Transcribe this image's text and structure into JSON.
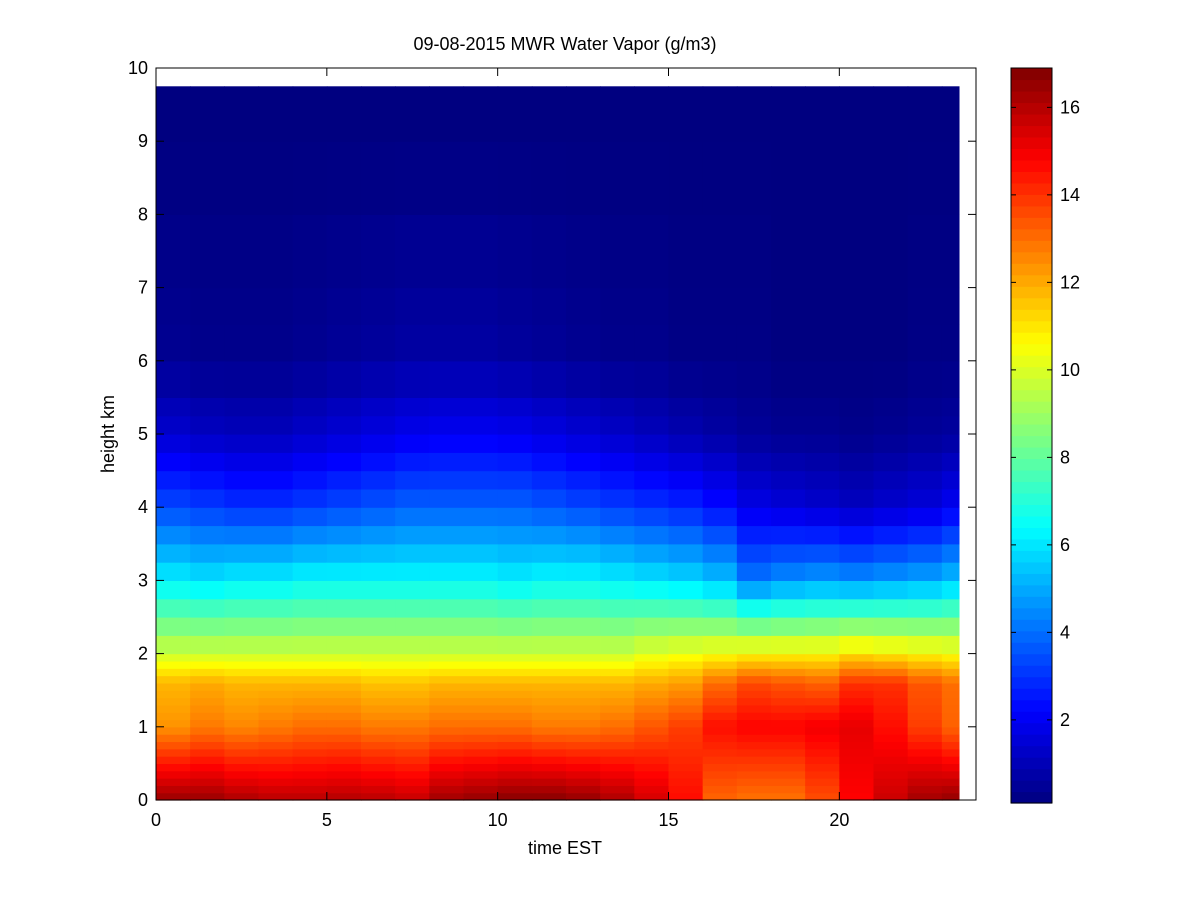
{
  "chart_data": {
    "type": "heatmap",
    "title": "09-08-2015 MWR Water Vapor (g/m3)",
    "xlabel": "time EST",
    "ylabel": "height km",
    "xlim": [
      0,
      24
    ],
    "ylim": [
      0,
      10
    ],
    "x_ticks": [
      0,
      5,
      10,
      15,
      20
    ],
    "y_ticks": [
      0,
      1,
      2,
      3,
      4,
      5,
      6,
      7,
      8,
      9,
      10
    ],
    "colormap": "jet",
    "colorbar": {
      "range": [
        0.1,
        16.9
      ],
      "ticks": [
        2,
        4,
        6,
        8,
        10,
        12,
        14,
        16
      ]
    },
    "data_extent": {
      "x": [
        0,
        23.5
      ],
      "y": [
        0,
        9.75
      ]
    },
    "time_columns": [
      0.0,
      1.0,
      2.0,
      3.0,
      4.0,
      5.0,
      6.0,
      7.0,
      8.0,
      9.0,
      10.0,
      11.0,
      12.0,
      13.0,
      14.0,
      15.0,
      16.0,
      17.0,
      18.0,
      19.0,
      20.0,
      21.0,
      22.0,
      23.0
    ],
    "height_levels": [
      0,
      0.1,
      0.2,
      0.3,
      0.4,
      0.5,
      0.6,
      0.7,
      0.8,
      0.9,
      1.0,
      1.1,
      1.2,
      1.3,
      1.4,
      1.5,
      1.6,
      1.7,
      1.8,
      1.9,
      2.0,
      2.25,
      2.5,
      2.75,
      3.0,
      3.25,
      3.5,
      3.75,
      4.0,
      4.25,
      4.5,
      4.75,
      5.0,
      5.25,
      5.5,
      6.0,
      6.5,
      7.0,
      8.0,
      9.0
    ],
    "profiles": {
      "surface": [
        16.3,
        16.3,
        16.0,
        15.8,
        15.8,
        15.9,
        15.8,
        15.6,
        16.2,
        16.4,
        16.6,
        16.6,
        16.4,
        16.0,
        15.4,
        14.6,
        13.2,
        13.0,
        13.0,
        13.6,
        14.8,
        15.6,
        16.2,
        16.4
      ],
      "low_1km": [
        12.4,
        12.8,
        12.6,
        12.8,
        13.0,
        13.0,
        12.8,
        12.8,
        13.0,
        13.0,
        13.0,
        12.8,
        12.8,
        13.0,
        13.4,
        13.8,
        14.6,
        14.8,
        14.8,
        15.0,
        15.2,
        14.6,
        13.8,
        13.2
      ],
      "mid_1_8km": [
        11.8,
        12.0,
        11.8,
        11.8,
        11.8,
        11.8,
        11.6,
        11.6,
        11.8,
        11.8,
        11.8,
        11.8,
        11.8,
        11.8,
        12.0,
        12.2,
        13.0,
        13.6,
        13.4,
        13.2,
        14.0,
        14.0,
        13.4,
        13.0
      ],
      "h_2km": [
        9.8,
        9.8,
        9.8,
        9.8,
        9.8,
        9.8,
        9.8,
        9.8,
        9.8,
        9.8,
        9.8,
        9.8,
        9.8,
        9.8,
        10.2,
        10.4,
        10.6,
        10.8,
        10.8,
        10.8,
        11.2,
        11.0,
        10.8,
        10.6
      ],
      "h_3km": [
        6.2,
        6.0,
        6.2,
        6.2,
        6.4,
        6.4,
        6.4,
        6.4,
        6.4,
        6.4,
        6.2,
        6.4,
        6.4,
        6.2,
        6.0,
        5.8,
        5.4,
        4.2,
        4.6,
        4.8,
        4.6,
        4.8,
        5.0,
        5.4
      ],
      "h_4km": [
        3.4,
        3.2,
        3.0,
        3.0,
        3.2,
        3.4,
        3.6,
        3.8,
        3.8,
        3.8,
        3.8,
        3.6,
        3.4,
        3.2,
        3.0,
        2.8,
        2.4,
        1.8,
        1.6,
        1.4,
        1.2,
        1.4,
        1.6,
        2.0
      ],
      "h_5km": [
        1.4,
        1.2,
        1.1,
        1.1,
        1.3,
        1.5,
        1.7,
        1.9,
        2.0,
        2.0,
        1.9,
        1.7,
        1.5,
        1.3,
        1.1,
        0.9,
        0.7,
        0.5,
        0.4,
        0.4,
        0.3,
        0.4,
        0.5,
        0.6
      ],
      "h_6km": [
        0.4,
        0.3,
        0.3,
        0.3,
        0.4,
        0.5,
        0.6,
        0.7,
        0.7,
        0.7,
        0.6,
        0.5,
        0.4,
        0.3,
        0.3,
        0.2,
        0.2,
        0.2,
        0.1,
        0.1,
        0.1,
        0.1,
        0.2,
        0.2
      ],
      "h_9km": [
        0.1,
        0.1,
        0.1,
        0.1,
        0.1,
        0.1,
        0.1,
        0.1,
        0.1,
        0.1,
        0.1,
        0.1,
        0.1,
        0.1,
        0.1,
        0.1,
        0.1,
        0.1,
        0.1,
        0.1,
        0.1,
        0.1,
        0.1,
        0.1
      ]
    }
  }
}
